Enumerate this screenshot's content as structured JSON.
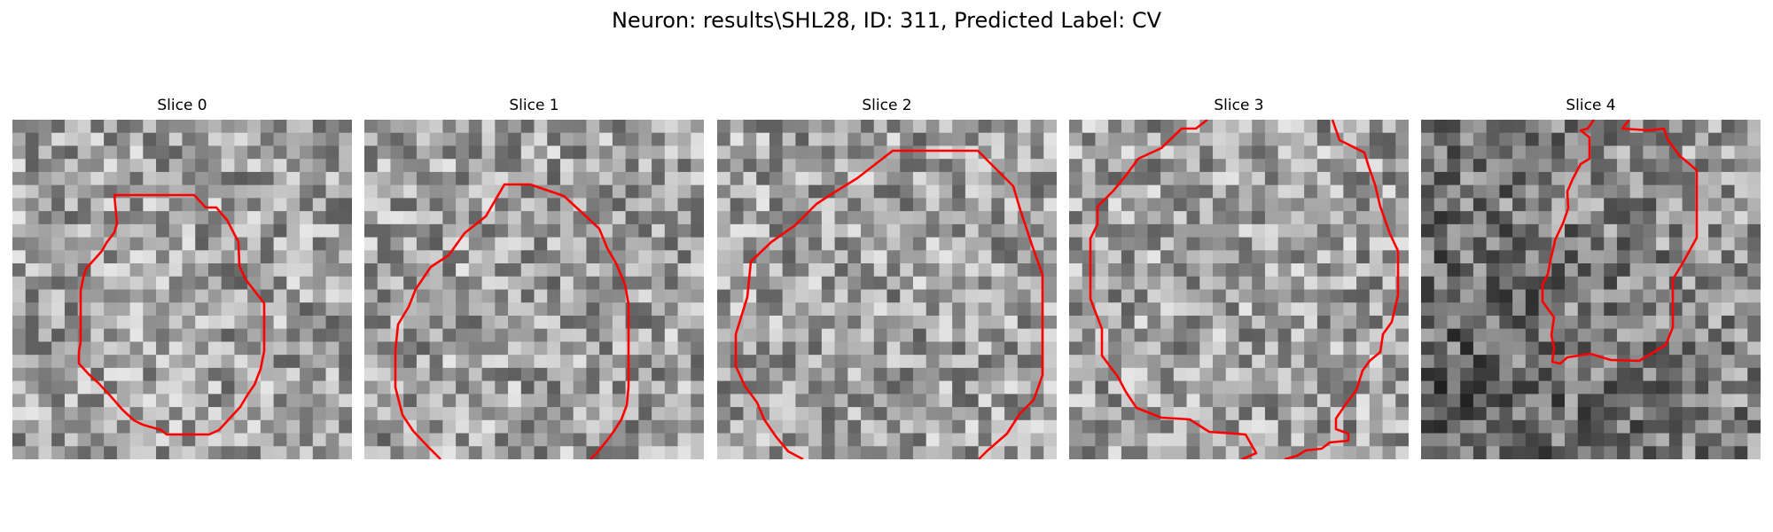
{
  "figure": {
    "title": "Neuron: results\\SHL28, ID: 311, Predicted Label: CV"
  },
  "panels": [
    {
      "title": "Slice 0"
    },
    {
      "title": "Slice 1"
    },
    {
      "title": "Slice 2"
    },
    {
      "title": "Slice 3"
    },
    {
      "title": "Slice 4"
    }
  ],
  "colors": {
    "contour": "#ff0000",
    "background": "#ffffff"
  }
}
